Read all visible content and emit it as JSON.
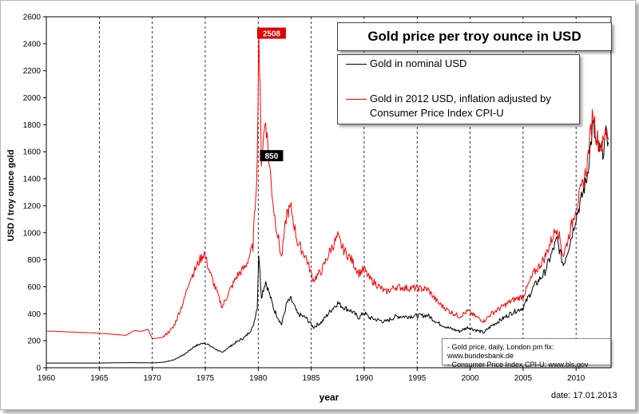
{
  "chart_data": {
    "type": "line",
    "title": "Gold price per troy ounce in USD",
    "xlabel": "year",
    "ylabel": "USD / troy ounce gold",
    "xlim": [
      1960,
      2013.3
    ],
    "ylim": [
      0,
      2600
    ],
    "x_ticks": [
      "1960",
      "1965",
      "1970",
      "1975",
      "1980",
      "1985",
      "1990",
      "1995",
      "2000",
      "2005",
      "2010"
    ],
    "y_ticks": [
      "0",
      "200",
      "400",
      "600",
      "800",
      "1000",
      "1200",
      "1400",
      "1600",
      "1800",
      "2000",
      "2200",
      "2400",
      "2600"
    ],
    "grid": "vertical dashed lines at each x tick",
    "legend_position": "top-right",
    "series": [
      {
        "name": "Gold in nominal USD",
        "color": "#000000",
        "points": [
          [
            1960,
            35
          ],
          [
            1965,
            35
          ],
          [
            1968,
            38
          ],
          [
            1970,
            36
          ],
          [
            1971,
            40
          ],
          [
            1972,
            58
          ],
          [
            1973,
            97
          ],
          [
            1974,
            159
          ],
          [
            1974.9,
            186
          ],
          [
            1975.5,
            160
          ],
          [
            1976.6,
            110
          ],
          [
            1977,
            140
          ],
          [
            1978,
            193
          ],
          [
            1978.8,
            230
          ],
          [
            1979.5,
            300
          ],
          [
            1979.9,
            450
          ],
          [
            1980.05,
            850
          ],
          [
            1980.3,
            530
          ],
          [
            1980.7,
            640
          ],
          [
            1981,
            560
          ],
          [
            1981.5,
            430
          ],
          [
            1982.2,
            320
          ],
          [
            1982.7,
            480
          ],
          [
            1983.1,
            510
          ],
          [
            1983.7,
            400
          ],
          [
            1984.5,
            370
          ],
          [
            1985.2,
            300
          ],
          [
            1986,
            340
          ],
          [
            1986.8,
            420
          ],
          [
            1987.5,
            480
          ],
          [
            1988,
            450
          ],
          [
            1988.8,
            420
          ],
          [
            1989.5,
            370
          ],
          [
            1990,
            410
          ],
          [
            1990.5,
            370
          ],
          [
            1991,
            360
          ],
          [
            1992,
            340
          ],
          [
            1993,
            380
          ],
          [
            1994,
            380
          ],
          [
            1995,
            385
          ],
          [
            1996,
            388
          ],
          [
            1997,
            330
          ],
          [
            1998,
            294
          ],
          [
            1999,
            270
          ],
          [
            1999.8,
            300
          ],
          [
            2000.5,
            280
          ],
          [
            2001.3,
            260
          ],
          [
            2002,
            310
          ],
          [
            2003,
            360
          ],
          [
            2004,
            410
          ],
          [
            2005,
            445
          ],
          [
            2006,
            600
          ],
          [
            2006.5,
            650
          ],
          [
            2007,
            700
          ],
          [
            2008.2,
            950
          ],
          [
            2008.8,
            760
          ],
          [
            2009.5,
            950
          ],
          [
            2010,
            1120
          ],
          [
            2010.5,
            1250
          ],
          [
            2011,
            1400
          ],
          [
            2011.6,
            1800
          ],
          [
            2011.9,
            1650
          ],
          [
            2012.3,
            1600
          ],
          [
            2012.6,
            1620
          ],
          [
            2012.9,
            1750
          ],
          [
            2013.05,
            1670
          ]
        ]
      },
      {
        "name": "Gold in 2012 USD, inflation adjusted by Consumer Price Index CPI-U",
        "color": "#ff0000",
        "points": [
          [
            1960,
            272
          ],
          [
            1965,
            256
          ],
          [
            1967.5,
            240
          ],
          [
            1968.3,
            275
          ],
          [
            1969,
            270
          ],
          [
            1969.6,
            285
          ],
          [
            1970,
            215
          ],
          [
            1971,
            225
          ],
          [
            1972,
            300
          ],
          [
            1973,
            500
          ],
          [
            1973.5,
            650
          ],
          [
            1974,
            720
          ],
          [
            1974.5,
            800
          ],
          [
            1974.9,
            850
          ],
          [
            1975.5,
            690
          ],
          [
            1976.6,
            450
          ],
          [
            1977,
            520
          ],
          [
            1978,
            680
          ],
          [
            1978.8,
            750
          ],
          [
            1979.5,
            900
          ],
          [
            1979.9,
            1500
          ],
          [
            1980.05,
            2508
          ],
          [
            1980.3,
            1550
          ],
          [
            1980.7,
            1850
          ],
          [
            1981,
            1550
          ],
          [
            1981.5,
            1150
          ],
          [
            1982.2,
            810
          ],
          [
            1982.7,
            1150
          ],
          [
            1983.1,
            1180
          ],
          [
            1983.7,
            930
          ],
          [
            1984.5,
            820
          ],
          [
            1985.2,
            650
          ],
          [
            1986,
            720
          ],
          [
            1986.8,
            870
          ],
          [
            1987.5,
            970
          ],
          [
            1988,
            880
          ],
          [
            1988.8,
            800
          ],
          [
            1989.5,
            700
          ],
          [
            1990,
            730
          ],
          [
            1990.5,
            660
          ],
          [
            1991,
            630
          ],
          [
            1992,
            560
          ],
          [
            1993,
            600
          ],
          [
            1994,
            590
          ],
          [
            1995,
            590
          ],
          [
            1996,
            580
          ],
          [
            1997,
            480
          ],
          [
            1998,
            420
          ],
          [
            1999,
            380
          ],
          [
            1999.8,
            420
          ],
          [
            2000.5,
            380
          ],
          [
            2001.3,
            345
          ],
          [
            2002,
            400
          ],
          [
            2003,
            450
          ],
          [
            2004,
            500
          ],
          [
            2005,
            530
          ],
          [
            2006,
            700
          ],
          [
            2006.5,
            750
          ],
          [
            2007,
            810
          ],
          [
            2008.2,
            1050
          ],
          [
            2008.8,
            830
          ],
          [
            2009.5,
            1030
          ],
          [
            2010,
            1200
          ],
          [
            2010.5,
            1320
          ],
          [
            2011,
            1480
          ],
          [
            2011.6,
            1910
          ],
          [
            2011.9,
            1720
          ],
          [
            2012.3,
            1640
          ],
          [
            2012.6,
            1660
          ],
          [
            2012.9,
            1790
          ],
          [
            2013.05,
            1690
          ]
        ]
      }
    ],
    "annotations": [
      {
        "text": "2508",
        "x": 1980.05,
        "y": 2508,
        "bg": "#e00000",
        "fg": "#ffffff"
      },
      {
        "text": "850",
        "x": 1980.05,
        "y": 850,
        "bg": "#000000",
        "fg": "#ffffff"
      }
    ]
  },
  "legend": {
    "nominal_label": "Gold in nominal USD",
    "adjusted_label": "Gold in 2012 USD, inflation adjusted by Consumer Price Index CPI-U"
  },
  "sources": [
    "- Gold price, daily, London pm fix: www.bundesbank.de",
    "- Consumer Price Index CPI-U: www.bls.gov"
  ],
  "date_text": "date: 17.01.2013"
}
